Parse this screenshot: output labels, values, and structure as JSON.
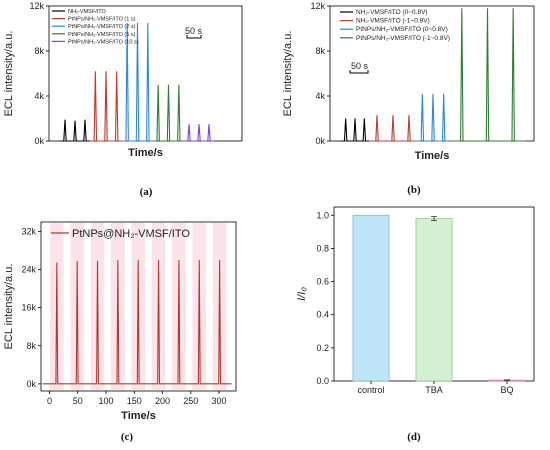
{
  "chart_data": [
    {
      "panel": "a",
      "type": "line",
      "panel_label": "(a)",
      "xlabel": "Time/s",
      "ylabel": "ECL intensity/a.u.",
      "ylim": [
        0,
        12000
      ],
      "y_ticks": [
        "0k",
        "4k",
        "8k",
        "12k"
      ],
      "y_tick_values": [
        0,
        4000,
        8000,
        12000
      ],
      "scale_bar": "50 s",
      "grid": false,
      "legend_position": "top-left",
      "series": [
        {
          "name": "NH₂-VMSF/ITO",
          "color": "#000000",
          "peaks": [
            1900,
            1800,
            1900
          ]
        },
        {
          "name": "PtNPs/NH₂-VMSF/ITO (1 s)",
          "color": "#c0392b",
          "peaks": [
            6200,
            6200,
            6200
          ]
        },
        {
          "name": "PtNPs/NH₂-VMSF/ITO (2 s)",
          "color": "#2e86de",
          "peaks": [
            10500,
            10500,
            10500
          ]
        },
        {
          "name": "PtNPs/NH₂-VMSF/ITO (5 s)",
          "color": "#2e7d32",
          "peaks": [
            5000,
            5000,
            5000
          ]
        },
        {
          "name": "PtNPs/NH₂-VMSF/ITO (10 s)",
          "color": "#7b3fe4",
          "peaks": [
            1500,
            1500,
            1500
          ]
        }
      ]
    },
    {
      "panel": "b",
      "type": "line",
      "panel_label": "(b)",
      "xlabel": "Time/s",
      "ylabel": "ECL intensity/a.u.",
      "ylim": [
        0,
        12000
      ],
      "y_ticks": [
        "0k",
        "4k",
        "8k",
        "12k"
      ],
      "y_tick_values": [
        0,
        4000,
        8000,
        12000
      ],
      "scale_bar": "50 s",
      "grid": false,
      "legend_position": "top-left",
      "series": [
        {
          "name": "NH₂-VMSF/ITO (0~0.8V)",
          "color": "#000000",
          "peaks": [
            2000,
            2000,
            2000
          ]
        },
        {
          "name": "NH₂-VMSF/ITO (-1~0.8V)",
          "color": "#c0392b",
          "peaks": [
            2300,
            2300,
            2300
          ]
        },
        {
          "name": "PtNPs/NH₂-VMSF/ITO (0~0.8V)",
          "color": "#2e86de",
          "peaks": [
            4200,
            4200,
            4200
          ]
        },
        {
          "name": "PtNPs/NH₂-VMSF/ITO (-1~0.8V)",
          "color": "#2e7d32",
          "peaks": [
            11800,
            11800,
            11800
          ]
        }
      ]
    },
    {
      "panel": "c",
      "type": "line",
      "panel_label": "(c)",
      "xlabel": "Time/s",
      "ylabel": "ECL intensity/a.u.",
      "xlim": [
        -15,
        330
      ],
      "ylim": [
        -1500,
        34000
      ],
      "x_ticks": [
        "0",
        "50",
        "100",
        "150",
        "200",
        "250",
        "300"
      ],
      "x_tick_values": [
        0,
        50,
        100,
        150,
        200,
        250,
        300
      ],
      "y_ticks": [
        "0k",
        "8k",
        "16k",
        "24k",
        "32k"
      ],
      "y_tick_values": [
        0,
        8000,
        16000,
        24000,
        32000
      ],
      "grid": false,
      "legend_position": "top",
      "series": [
        {
          "name": "PtNPs@NH₂-VMSF/ITO",
          "color": "#b03a2e",
          "peak_times": [
            13,
            49,
            85,
            121,
            157,
            193,
            229,
            265,
            301
          ],
          "peak_values": [
            25500,
            25800,
            25800,
            26000,
            26000,
            26000,
            26000,
            26000,
            26000
          ]
        }
      ]
    },
    {
      "panel": "d",
      "type": "bar",
      "panel_label": "(d)",
      "xlabel": "",
      "ylabel": "I/I₀",
      "ylim": [
        0,
        1.05
      ],
      "y_ticks": [
        "0.0",
        "0.2",
        "0.4",
        "0.6",
        "0.8",
        "1.0"
      ],
      "y_tick_values": [
        0,
        0.2,
        0.4,
        0.6,
        0.8,
        1.0
      ],
      "categories": [
        "control",
        "TBA",
        "BQ"
      ],
      "values": [
        1.0,
        0.98,
        0.005
      ],
      "errors": [
        0,
        0.012,
        0.002
      ],
      "colors": [
        "#bfe6f7",
        "#d5efd3",
        "#f6cdd4"
      ],
      "edge_colors": [
        "#79b8dd",
        "#8cc88a",
        "#e0899a"
      ],
      "grid": false
    }
  ]
}
